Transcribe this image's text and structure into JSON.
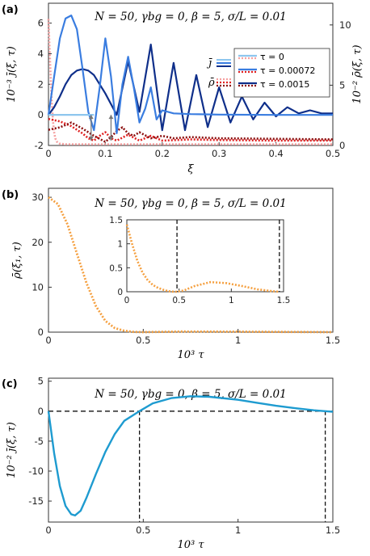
{
  "chart_data": [
    {
      "panel_label": "(a)",
      "type": "line",
      "annotation": "N = 50, γbg = 0, β = 5, σ/L = 0.01",
      "xlabel": "ξ",
      "ylabel_left": "10⁻³ j̄(ξ, τ)",
      "ylabel_right": "10⁻² ρ̄(ξ, τ)",
      "xlim": [
        0,
        0.5
      ],
      "ylim_left": [
        -2,
        7.3
      ],
      "ylim_right": [
        0,
        11.8
      ],
      "xticks": [
        "0",
        "0.1",
        "0.2",
        "0.3",
        "0.4",
        "0.5"
      ],
      "yticks_left": [
        "-2",
        "0",
        "2",
        "4",
        "6"
      ],
      "yticks_right": [
        "0",
        "5",
        "10"
      ],
      "legend": {
        "j_label": "j̄",
        "rho_label": "ρ̄",
        "entries": [
          "τ = 0",
          "τ = 0.00072",
          "τ = 0.0015"
        ]
      },
      "series_colors": {
        "j_tau0": "#8ec6ee",
        "j_tau1": "#3a7de0",
        "j_tau2": "#0f2f8a",
        "rho_tau0": "#f5a0a0",
        "rho_tau1": "#e02020",
        "rho_tau2": "#8b0f0f"
      },
      "series": [
        {
          "key": "j_tau1",
          "axis": "left",
          "x": [
            0,
            0.01,
            0.02,
            0.03,
            0.04,
            0.05,
            0.06,
            0.07,
            0.08,
            0.09,
            0.1,
            0.11,
            0.12,
            0.13,
            0.14,
            0.15,
            0.16,
            0.17,
            0.18,
            0.19,
            0.2,
            0.22,
            0.25,
            0.3,
            0.4,
            0.5
          ],
          "y": [
            0,
            2.5,
            5.0,
            6.3,
            6.5,
            5.6,
            3.0,
            0.2,
            -1.0,
            1.8,
            5.0,
            2.5,
            -1.2,
            2.0,
            3.8,
            1.8,
            -0.5,
            0.4,
            1.8,
            -0.3,
            0.3,
            0.1,
            0.05,
            0.02,
            0.0,
            0.0
          ]
        },
        {
          "key": "j_tau2",
          "axis": "left",
          "x": [
            0,
            0.01,
            0.02,
            0.03,
            0.04,
            0.05,
            0.06,
            0.07,
            0.08,
            0.09,
            0.1,
            0.12,
            0.14,
            0.16,
            0.18,
            0.2,
            0.22,
            0.24,
            0.26,
            0.28,
            0.3,
            0.32,
            0.34,
            0.36,
            0.38,
            0.4,
            0.42,
            0.44,
            0.46,
            0.48,
            0.5
          ],
          "y": [
            0,
            0.5,
            1.2,
            2.0,
            2.6,
            2.9,
            3.0,
            2.9,
            2.6,
            2.0,
            1.4,
            0.0,
            3.5,
            0.2,
            4.6,
            -1.0,
            3.4,
            -1.0,
            2.6,
            -0.8,
            1.8,
            -0.5,
            1.2,
            -0.3,
            0.8,
            -0.1,
            0.5,
            0.1,
            0.3,
            0.1,
            0.1
          ]
        },
        {
          "key": "rho_tau0",
          "axis": "right",
          "x": [
            0,
            0.002,
            0.004,
            0.006,
            0.008,
            0.01,
            0.012,
            0.015,
            0.02,
            0.03,
            0.05,
            0.1,
            0.2,
            0.3,
            0.5
          ],
          "y": [
            10.5,
            8.0,
            5.5,
            3.5,
            2.0,
            1.1,
            0.6,
            0.3,
            0.15,
            0.1,
            0.1,
            0.1,
            0.1,
            0.1,
            0.1
          ]
        },
        {
          "key": "rho_tau1",
          "axis": "right",
          "x": [
            0,
            0.02,
            0.04,
            0.06,
            0.07,
            0.08,
            0.09,
            0.1,
            0.11,
            0.12,
            0.14,
            0.16,
            0.18,
            0.2,
            0.25,
            0.3,
            0.4,
            0.5
          ],
          "y": [
            2.2,
            2.0,
            1.6,
            1.0,
            0.6,
            0.4,
            0.8,
            1.1,
            0.6,
            0.4,
            0.9,
            0.4,
            0.8,
            0.4,
            0.5,
            0.45,
            0.4,
            0.4
          ]
        },
        {
          "key": "rho_tau2",
          "axis": "right",
          "x": [
            0,
            0.02,
            0.04,
            0.06,
            0.08,
            0.1,
            0.11,
            0.12,
            0.13,
            0.14,
            0.15,
            0.16,
            0.18,
            0.2,
            0.22,
            0.25,
            0.3,
            0.4,
            0.5
          ],
          "y": [
            1.3,
            1.5,
            1.9,
            1.4,
            0.8,
            0.3,
            0.7,
            1.2,
            1.5,
            1.0,
            0.8,
            1.1,
            0.6,
            0.8,
            0.6,
            0.7,
            0.6,
            0.55,
            0.5
          ]
        }
      ],
      "arrows": [
        {
          "x": 0.075,
          "from_rho": 0.4,
          "to_j": 0.0
        },
        {
          "x": 0.11,
          "from_rho": 0.4,
          "to_j": 0.0
        }
      ]
    },
    {
      "panel_label": "(b)",
      "type": "line",
      "annotation": "N = 50, γbg = 0, β = 5, σ/L = 0.01",
      "xlabel": "10³ τ",
      "ylabel": "ρ̄(ξ₁, τ)",
      "xlim": [
        0,
        1.5
      ],
      "ylim": [
        0,
        32
      ],
      "xticks": [
        "0",
        "0.5",
        "1",
        "1.5"
      ],
      "yticks": [
        "0",
        "10",
        "20",
        "30"
      ],
      "color": "#f5a040",
      "x": [
        0,
        0.05,
        0.1,
        0.15,
        0.2,
        0.25,
        0.3,
        0.35,
        0.4,
        0.45,
        0.5,
        0.7,
        1.0,
        1.5
      ],
      "y": [
        30,
        28.5,
        24,
        17.5,
        11,
        5.8,
        2.5,
        0.9,
        0.3,
        0.05,
        0,
        0.15,
        0.1,
        0
      ],
      "inset": {
        "xlim": [
          0,
          1.5
        ],
        "ylim": [
          0,
          1.5
        ],
        "xticks": [
          "0",
          "0.5",
          "1",
          "1.5"
        ],
        "yticks": [
          "0",
          "0.5",
          "1",
          "1.5"
        ],
        "x": [
          0,
          0.05,
          0.1,
          0.15,
          0.2,
          0.25,
          0.3,
          0.35,
          0.4,
          0.45,
          0.48,
          0.55,
          0.65,
          0.8,
          0.95,
          1.1,
          1.25,
          1.4,
          1.46
        ],
        "y": [
          1.4,
          1.0,
          0.65,
          0.4,
          0.24,
          0.14,
          0.08,
          0.04,
          0.01,
          0.0,
          0.0,
          0.03,
          0.12,
          0.2,
          0.18,
          0.12,
          0.05,
          0.01,
          0.0
        ],
        "vlines": [
          0.48,
          1.46
        ]
      }
    },
    {
      "panel_label": "(c)",
      "type": "line",
      "annotation": "N = 50, γbg = 0, β = 5, σ/L = 0.01",
      "xlabel": "10³ τ",
      "ylabel": "10⁻² j̄(ξ, τ)",
      "xlim": [
        0,
        1.5
      ],
      "ylim": [
        -18.5,
        5.5
      ],
      "xticks": [
        "0",
        "0.5",
        "1",
        "1.5"
      ],
      "yticks": [
        "-15",
        "-10",
        "-5",
        "0",
        "5"
      ],
      "color": "#1e9bd0",
      "x": [
        0,
        0.03,
        0.06,
        0.09,
        0.12,
        0.14,
        0.17,
        0.2,
        0.25,
        0.3,
        0.35,
        0.4,
        0.48,
        0.55,
        0.65,
        0.75,
        0.85,
        1.0,
        1.1,
        1.2,
        1.3,
        1.4,
        1.46,
        1.5
      ],
      "y": [
        0,
        -7,
        -12.5,
        -15.8,
        -17.2,
        -17.4,
        -16.6,
        -14.5,
        -10.5,
        -6.8,
        -3.8,
        -1.6,
        0,
        1.3,
        2.2,
        2.5,
        2.4,
        1.9,
        1.4,
        0.9,
        0.5,
        0.15,
        0,
        -0.1
      ],
      "hline": 0,
      "vlines": [
        0.48,
        1.46
      ]
    }
  ]
}
